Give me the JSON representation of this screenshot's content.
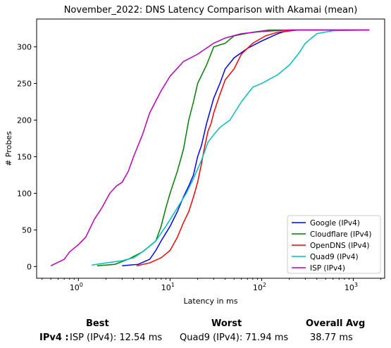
{
  "chart_data": {
    "type": "line",
    "title": "November_2022: DNS Latency Comparison with Akamai (mean)",
    "xlabel": "Latency in ms",
    "ylabel": "# Probes",
    "xscale": "log",
    "xlim": [
      0.35,
      2200
    ],
    "ylim": [
      -16,
      338
    ],
    "xticks": [
      1,
      10,
      100,
      1000
    ],
    "xtick_labels": [
      "10^0",
      "10^1",
      "10^2",
      "10^3"
    ],
    "yticks": [
      0,
      50,
      100,
      150,
      200,
      250,
      300
    ],
    "grid": false,
    "legend_position": "lower-right",
    "series": [
      {
        "name": "Google (IPv4)",
        "color": "#0000ff",
        "points": [
          [
            3,
            1
          ],
          [
            4.5,
            3
          ],
          [
            6,
            10
          ],
          [
            7,
            22
          ],
          [
            8,
            35
          ],
          [
            10,
            55
          ],
          [
            12,
            75
          ],
          [
            14,
            95
          ],
          [
            16,
            110
          ],
          [
            18,
            125
          ],
          [
            20,
            150
          ],
          [
            22,
            165
          ],
          [
            25,
            195
          ],
          [
            30,
            230
          ],
          [
            35,
            250
          ],
          [
            40,
            270
          ],
          [
            50,
            285
          ],
          [
            70,
            298
          ],
          [
            100,
            308
          ],
          [
            150,
            318
          ],
          [
            200,
            323
          ],
          [
            500,
            323
          ],
          [
            1500,
            323
          ]
        ]
      },
      {
        "name": "Cloudflare (IPv4)",
        "color": "#008000",
        "points": [
          [
            1.6,
            1
          ],
          [
            2.5,
            3
          ],
          [
            3.5,
            10
          ],
          [
            5,
            20
          ],
          [
            6,
            28
          ],
          [
            7,
            35
          ],
          [
            8,
            55
          ],
          [
            9,
            80
          ],
          [
            10,
            100
          ],
          [
            12,
            130
          ],
          [
            14,
            160
          ],
          [
            16,
            200
          ],
          [
            18,
            225
          ],
          [
            20,
            250
          ],
          [
            25,
            275
          ],
          [
            30,
            300
          ],
          [
            40,
            305
          ],
          [
            50,
            315
          ],
          [
            80,
            320
          ],
          [
            120,
            323
          ],
          [
            1500,
            323
          ]
        ]
      },
      {
        "name": "OpenDNS (IPv4)",
        "color": "#ff0000",
        "points": [
          [
            4.3,
            1
          ],
          [
            6,
            5
          ],
          [
            8,
            12
          ],
          [
            10,
            22
          ],
          [
            12,
            40
          ],
          [
            14,
            60
          ],
          [
            16,
            75
          ],
          [
            18,
            95
          ],
          [
            20,
            115
          ],
          [
            22,
            140
          ],
          [
            24,
            165
          ],
          [
            26,
            185
          ],
          [
            28,
            195
          ],
          [
            30,
            210
          ],
          [
            35,
            235
          ],
          [
            40,
            255
          ],
          [
            50,
            270
          ],
          [
            60,
            290
          ],
          [
            80,
            305
          ],
          [
            110,
            315
          ],
          [
            150,
            320
          ],
          [
            250,
            323
          ],
          [
            1500,
            323
          ]
        ]
      },
      {
        "name": "Quad9 (IPv4)",
        "color": "#00bfbf",
        "points": [
          [
            1.4,
            2
          ],
          [
            2,
            5
          ],
          [
            3,
            8
          ],
          [
            4,
            12
          ],
          [
            5,
            20
          ],
          [
            7,
            35
          ],
          [
            9,
            55
          ],
          [
            12,
            80
          ],
          [
            15,
            100
          ],
          [
            18,
            120
          ],
          [
            22,
            145
          ],
          [
            26,
            170
          ],
          [
            30,
            180
          ],
          [
            35,
            190
          ],
          [
            45,
            200
          ],
          [
            60,
            225
          ],
          [
            80,
            245
          ],
          [
            100,
            250
          ],
          [
            150,
            262
          ],
          [
            200,
            275
          ],
          [
            250,
            290
          ],
          [
            300,
            305
          ],
          [
            400,
            318
          ],
          [
            600,
            322
          ],
          [
            1500,
            323
          ]
        ]
      },
      {
        "name": "ISP (IPv4)",
        "color": "#bf00bf",
        "points": [
          [
            0.5,
            1
          ],
          [
            0.7,
            10
          ],
          [
            0.8,
            20
          ],
          [
            1,
            30
          ],
          [
            1.2,
            40
          ],
          [
            1.5,
            65
          ],
          [
            1.8,
            80
          ],
          [
            2.2,
            100
          ],
          [
            2.6,
            110
          ],
          [
            3,
            115
          ],
          [
            3.5,
            130
          ],
          [
            4,
            150
          ],
          [
            5,
            180
          ],
          [
            6,
            210
          ],
          [
            8,
            240
          ],
          [
            10,
            260
          ],
          [
            14,
            280
          ],
          [
            20,
            290
          ],
          [
            30,
            305
          ],
          [
            40,
            312
          ],
          [
            60,
            318
          ],
          [
            100,
            321
          ],
          [
            200,
            323
          ],
          [
            1500,
            323
          ]
        ]
      }
    ]
  },
  "summary": {
    "headers": {
      "best": "Best",
      "worst": "Worst",
      "avg": "Overall Avg"
    },
    "row_label": "IPv4 :",
    "best": "ISP (IPv4): 12.54 ms",
    "worst": "Quad9 (IPv4): 71.94 ms",
    "avg": "38.77 ms"
  }
}
